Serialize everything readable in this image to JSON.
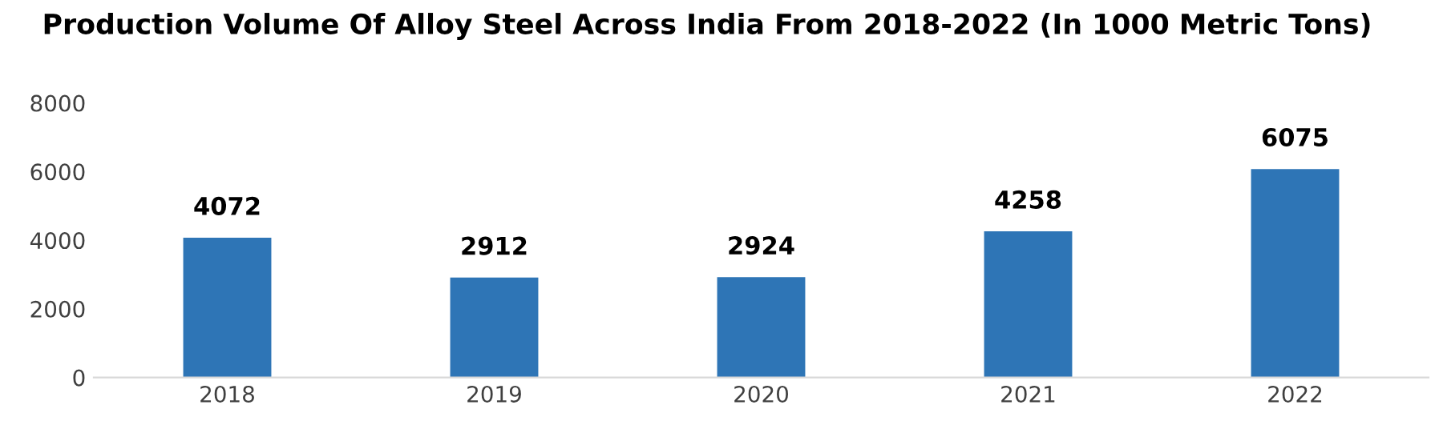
{
  "chart_data": {
    "type": "bar",
    "title": "Production Volume Of Alloy Steel Across India From 2018-2022 (In 1000 Metric Tons)",
    "categories": [
      "2018",
      "2019",
      "2020",
      "2021",
      "2022"
    ],
    "values": [
      4072,
      2912,
      2924,
      4258,
      6075
    ],
    "color": "#2e75b6",
    "ylim": [
      0,
      8000
    ],
    "yticks": [
      0,
      2000,
      4000,
      6000,
      8000
    ],
    "grid": false,
    "data_labels": true
  }
}
